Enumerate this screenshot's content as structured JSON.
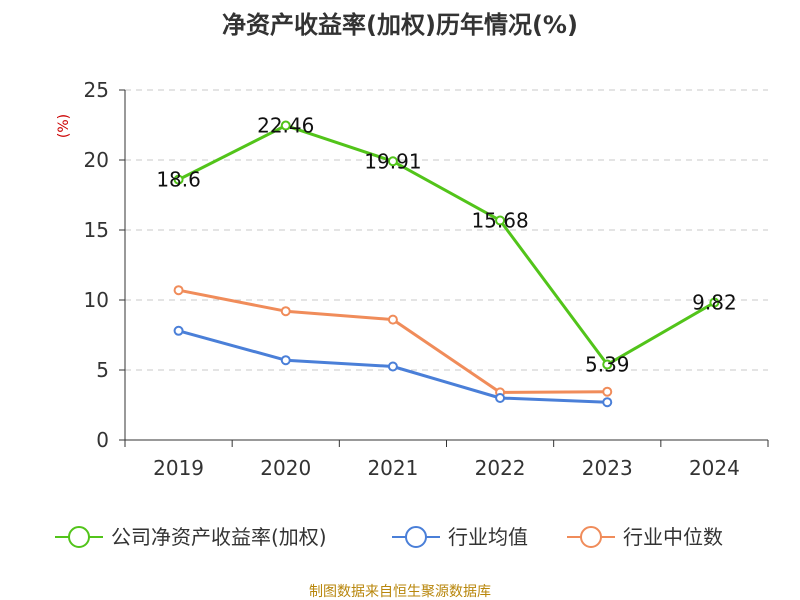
{
  "chart_data": {
    "type": "line",
    "title": "净资产收益率(加权)历年情况(%)",
    "ylabel": "(%)",
    "xlabel": "",
    "categories": [
      "2019",
      "2020",
      "2021",
      "2022",
      "2023",
      "2024"
    ],
    "ylim": [
      0,
      25
    ],
    "yticks": [
      0,
      5,
      10,
      15,
      20,
      25
    ],
    "grid": true,
    "legend_position": "bottom",
    "series": [
      {
        "name": "公司净资产收益率(加权)",
        "color": "#52c41a",
        "values": [
          18.6,
          22.46,
          19.91,
          15.68,
          5.39,
          9.82
        ],
        "labels": [
          "18.6",
          "22.46",
          "19.91",
          "15.68",
          "5.39",
          "9.82"
        ]
      },
      {
        "name": "行业均值",
        "color": "#4a7fd8",
        "values": [
          7.8,
          5.7,
          5.25,
          3.0,
          2.7,
          null
        ]
      },
      {
        "name": "行业中位数",
        "color": "#f08c5a",
        "values": [
          10.7,
          9.2,
          8.6,
          3.4,
          3.45,
          null
        ]
      }
    ],
    "source": "制图数据来自恒生聚源数据库"
  }
}
